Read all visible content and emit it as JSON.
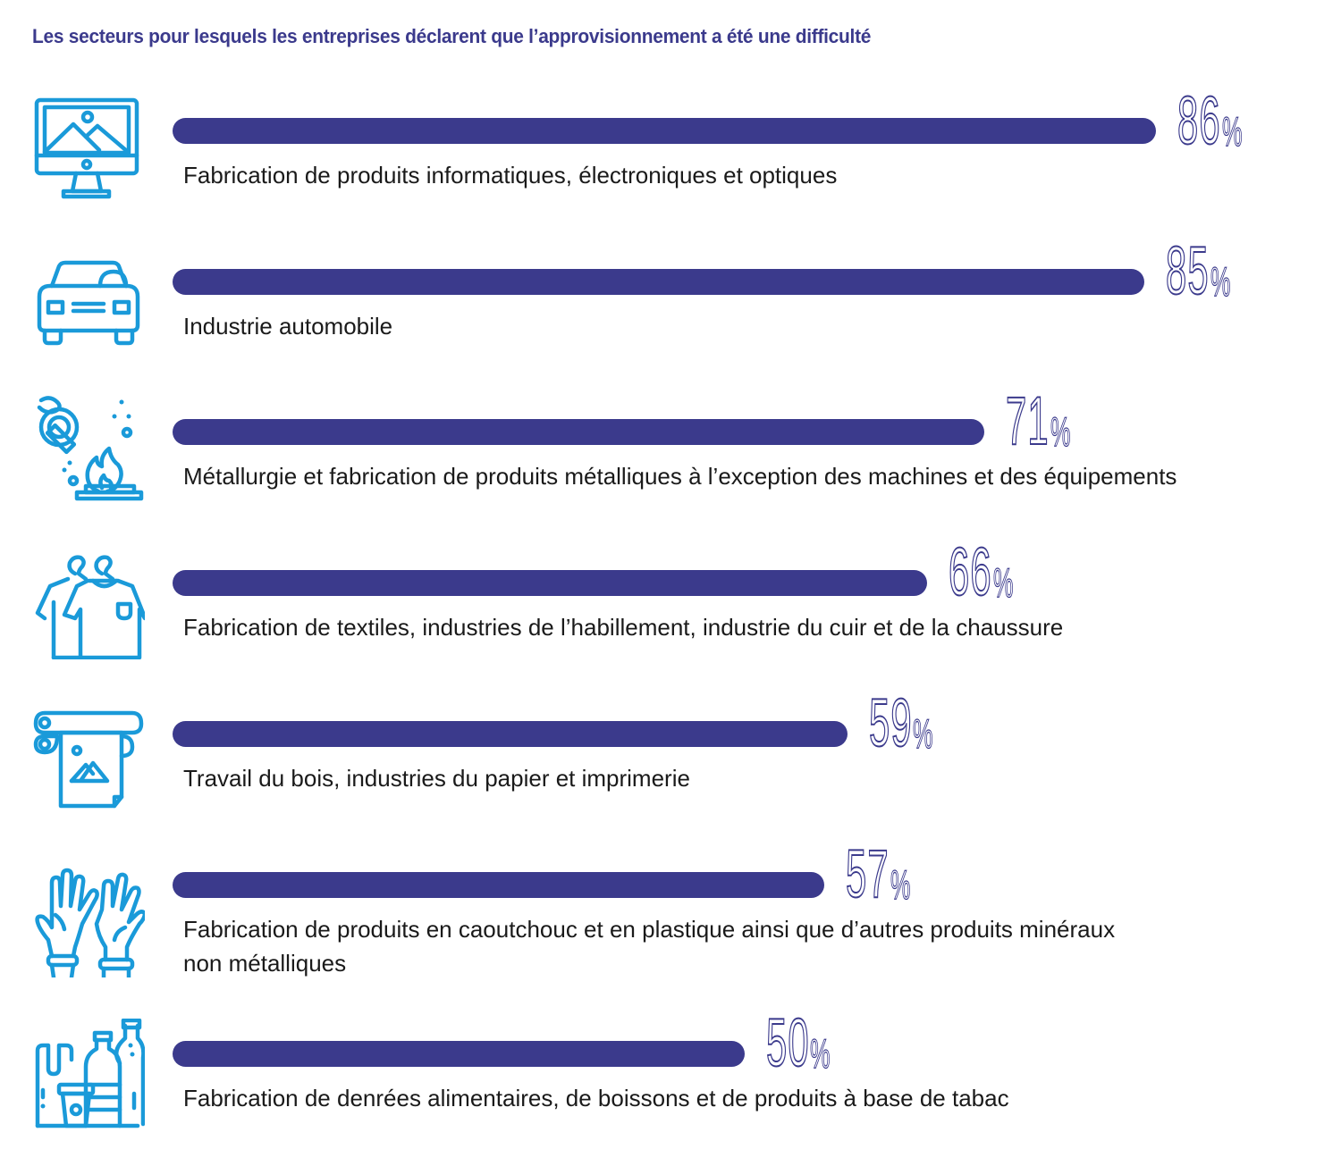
{
  "title": "Les secteurs pour lesquels les entreprises déclarent que l’approvisionnement a été une difficulté",
  "colors": {
    "bar": "#3b3a8c",
    "title": "#3b3a8c",
    "percent": "#3b3a8c",
    "icon": "#1a9ad9",
    "label": "#1a1a1a"
  },
  "chart_data": {
    "type": "bar",
    "orientation": "horizontal",
    "title": "Les secteurs pour lesquels les entreprises déclarent que l’approvisionnement a été une difficulté",
    "xlabel": "",
    "ylabel": "",
    "unit": "%",
    "xlim": [
      0,
      100
    ],
    "grid": false,
    "legend": "none",
    "categories": [
      "Fabrication de produits informatiques, électroniques et optiques",
      "Industrie automobile",
      "Métallurgie et fabrication de produits métalliques à l’exception des machines et des équipements",
      "Fabrication de textiles, industries de l’habillement, industrie du cuir et de la chaussure",
      "Travail du bois, industries du papier et imprimerie",
      "Fabrication de produits en caoutchouc et en plastique ainsi que d’autres produits minéraux non métalliques",
      "Fabrication de denrées alimentaires, de boissons et de produits à base de tabac"
    ],
    "values": [
      86,
      85,
      71,
      66,
      59,
      57,
      50
    ]
  },
  "rows": [
    {
      "icon": "computer-monitor-icon",
      "value": 86,
      "value_label": "86",
      "percent_sign": "%",
      "label_lines": [
        "Fabrication de produits informatiques, électroniques et optiques"
      ]
    },
    {
      "icon": "car-icon",
      "value": 85,
      "value_label": "85",
      "percent_sign": "%",
      "label_lines": [
        "Industrie automobile"
      ]
    },
    {
      "icon": "metal-forging-icon",
      "value": 71,
      "value_label": "71",
      "percent_sign": "%",
      "label_lines": [
        "Métallurgie et fabrication de produits métalliques à l’exception des machines et des équipements"
      ]
    },
    {
      "icon": "clothing-hanger-icon",
      "value": 66,
      "value_label": "66",
      "percent_sign": "%",
      "label_lines": [
        "Fabrication de textiles, industries de l’habillement, industrie du cuir et de la chaussure"
      ]
    },
    {
      "icon": "printing-press-icon",
      "value": 59,
      "value_label": "59",
      "percent_sign": "%",
      "label_lines": [
        "Travail du bois, industries du papier et imprimerie"
      ]
    },
    {
      "icon": "rubber-gloves-icon",
      "value": 57,
      "value_label": "57",
      "percent_sign": "%",
      "label_lines": [
        "Fabrication de produits en caoutchouc et en plastique ainsi que d’autres produits minéraux",
        "non métalliques"
      ]
    },
    {
      "icon": "food-beverage-packaging-icon",
      "value": 50,
      "value_label": "50",
      "percent_sign": "%",
      "label_lines": [
        "Fabrication de denrées alimentaires, de boissons et de produits à base de tabac"
      ]
    }
  ]
}
